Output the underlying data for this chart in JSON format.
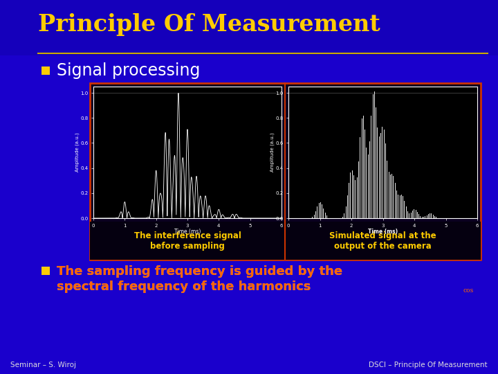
{
  "title": "Principle Of Measurement",
  "bullet1": "Signal processing",
  "bullet2_line1": "The sampling frequency is guided by the",
  "bullet2_line2": "spectral frequency of the harmonics",
  "bullet2_line3": "cos",
  "caption_left": "The interference signal\nbefore sampling",
  "caption_right": "Simulated signal at the\noutput of the camera",
  "footer_left": "Seminar – S. Wiroj",
  "footer_right": "DSCI – Principle Of Measurement",
  "bg_color": "#1a00cc",
  "title_color": "#ffcc00",
  "bullet1_color": "#ffffff",
  "bullet2_color_orange": "#ff6600",
  "bullet2_color_white": "#ffffff",
  "caption_color": "#ffcc00",
  "footer_color": "#dddddd",
  "bullet_marker_color": "#ffcc00",
  "title_underline_color": "#ccaa00",
  "plot_bg": "#000000",
  "plot_line_color": "#ffffff",
  "box_bg": "#0a0020",
  "box_border_color": "#cc3300",
  "divider_color": "#cc3300"
}
